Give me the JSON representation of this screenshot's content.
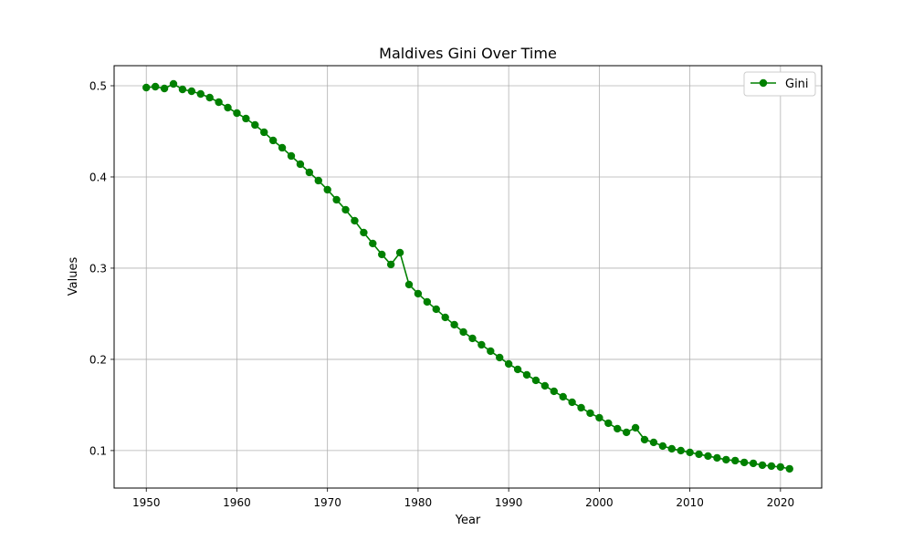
{
  "chart_data": {
    "type": "line",
    "title": "Maldives Gini Over Time",
    "xlabel": "Year",
    "ylabel": "Values",
    "xlim": [
      1946.45,
      2024.55
    ],
    "ylim": [
      0.0589,
      0.522
    ],
    "xticks": [
      1950,
      1960,
      1970,
      1980,
      1990,
      2000,
      2010,
      2020
    ],
    "yticks": [
      0.1,
      0.2,
      0.3,
      0.4,
      0.5
    ],
    "grid": true,
    "legend_position": "top-right",
    "series": [
      {
        "name": "Gini",
        "color": "#008000",
        "marker": "circle",
        "x": [
          1950,
          1951,
          1952,
          1953,
          1954,
          1955,
          1956,
          1957,
          1958,
          1959,
          1960,
          1961,
          1962,
          1963,
          1964,
          1965,
          1966,
          1967,
          1968,
          1969,
          1970,
          1971,
          1972,
          1973,
          1974,
          1975,
          1976,
          1977,
          1978,
          1979,
          1980,
          1981,
          1982,
          1983,
          1984,
          1985,
          1986,
          1987,
          1988,
          1989,
          1990,
          1991,
          1992,
          1993,
          1994,
          1995,
          1996,
          1997,
          1998,
          1999,
          2000,
          2001,
          2002,
          2003,
          2004,
          2005,
          2006,
          2007,
          2008,
          2009,
          2010,
          2011,
          2012,
          2013,
          2014,
          2015,
          2016,
          2017,
          2018,
          2019,
          2020,
          2021
        ],
        "values": [
          0.498,
          0.499,
          0.497,
          0.502,
          0.496,
          0.494,
          0.491,
          0.487,
          0.482,
          0.476,
          0.47,
          0.464,
          0.457,
          0.449,
          0.44,
          0.432,
          0.423,
          0.414,
          0.405,
          0.396,
          0.386,
          0.375,
          0.364,
          0.352,
          0.339,
          0.327,
          0.315,
          0.304,
          0.317,
          0.282,
          0.272,
          0.263,
          0.255,
          0.246,
          0.238,
          0.23,
          0.223,
          0.216,
          0.209,
          0.202,
          0.195,
          0.189,
          0.183,
          0.177,
          0.171,
          0.165,
          0.159,
          0.153,
          0.147,
          0.141,
          0.136,
          0.13,
          0.124,
          0.12,
          0.125,
          0.112,
          0.109,
          0.105,
          0.102,
          0.1,
          0.098,
          0.096,
          0.094,
          0.092,
          0.09,
          0.089,
          0.087,
          0.086,
          0.084,
          0.083,
          0.082,
          0.08
        ]
      }
    ]
  }
}
